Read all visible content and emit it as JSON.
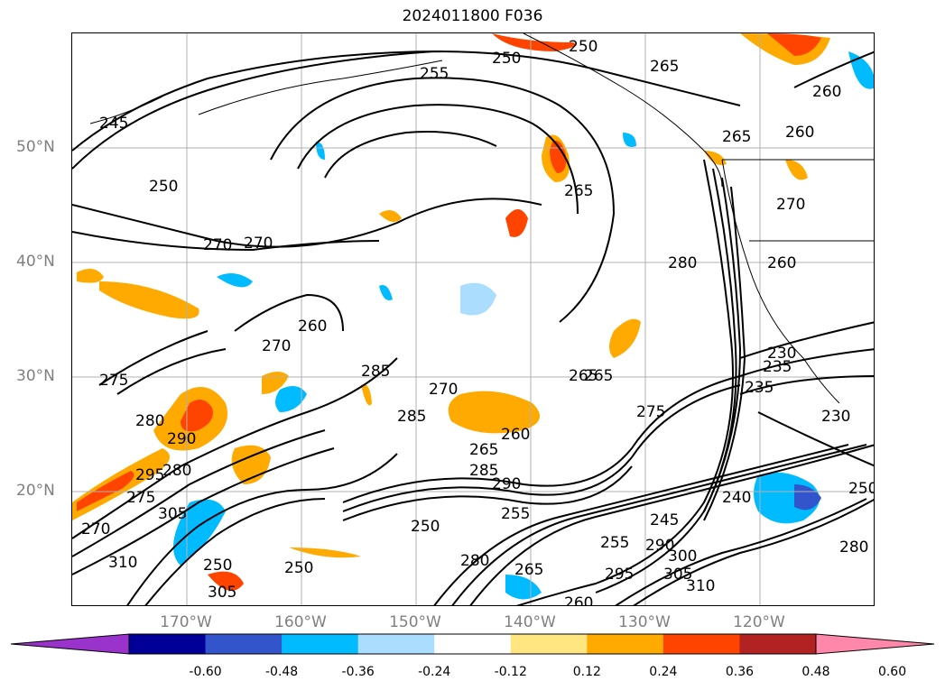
{
  "title": "2024011800 F036",
  "lat_labels": [
    {
      "text": "50°N",
      "lat": 50
    },
    {
      "text": "40°N",
      "lat": 40
    },
    {
      "text": "30°N",
      "lat": 30
    },
    {
      "text": "20°N",
      "lat": 20
    }
  ],
  "lon_labels": [
    {
      "text": "170°W",
      "lon": -170
    },
    {
      "text": "160°W",
      "lon": -160
    },
    {
      "text": "150°W",
      "lon": -150
    },
    {
      "text": "140°W",
      "lon": -140
    },
    {
      "text": "130°W",
      "lon": -130
    },
    {
      "text": "120°W",
      "lon": -120
    }
  ],
  "colorbar": {
    "ticks": [
      "-0.60",
      "-0.48",
      "-0.36",
      "-0.24",
      "-0.12",
      "0.12",
      "0.24",
      "0.36",
      "0.48",
      "0.60"
    ],
    "colors": [
      "#9933cc",
      "#000099",
      "#3355cc",
      "#00bbff",
      "#aaddff",
      "#ffffff",
      "#ffe680",
      "#ffaa00",
      "#ff4400",
      "#b22222",
      "#ff88aa"
    ]
  },
  "contour_labels": [
    "250",
    "255",
    "250",
    "265",
    "260",
    "245",
    "250",
    "265",
    "260",
    "265",
    "270",
    "270",
    "270",
    "260",
    "275",
    "270",
    "265",
    "285",
    "275",
    "280",
    "280",
    "290",
    "295",
    "280",
    "285",
    "265",
    "260",
    "275",
    "285",
    "290",
    "255",
    "245",
    "250",
    "305",
    "310",
    "250",
    "250",
    "305",
    "270",
    "280",
    "265",
    "295",
    "305",
    "310",
    "300",
    "290",
    "235",
    "240",
    "230",
    "250",
    "230",
    "235",
    "260",
    "280",
    "270",
    "265",
    "255",
    "260"
  ]
}
